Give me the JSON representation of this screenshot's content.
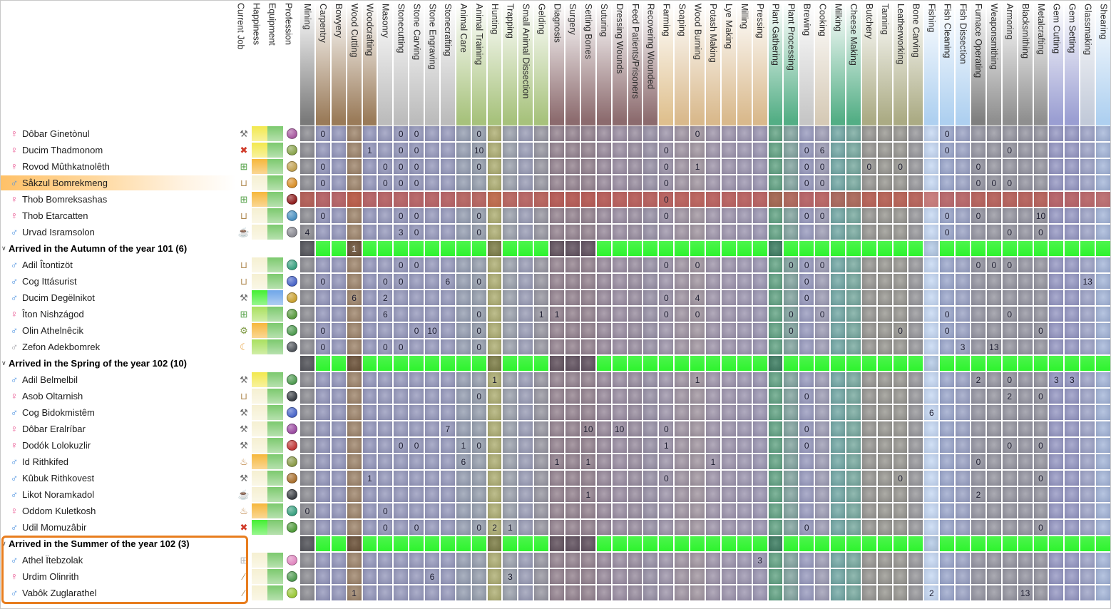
{
  "header": {
    "info_columns": [
      "Current Job",
      "Happiness",
      "Equipment",
      "Profession"
    ],
    "labor_columns": [
      {
        "label": "Mining",
        "header": "#7a7a7a",
        "body": "#8b8b90",
        "group": "#56575c"
      },
      {
        "label": "Carpentry",
        "header": "#9a7b59",
        "body": "#9295ba",
        "group": "green"
      },
      {
        "label": "Bowyery",
        "header": "#9a7b59",
        "body": "#9295ba",
        "group": "green"
      },
      {
        "label": "Wood Cutting",
        "header": "#9a7b59",
        "body": "#9c8267",
        "group": "#6d5339"
      },
      {
        "label": "Woodcrafting",
        "header": "#9a7b59",
        "body": "#9295ba",
        "group": "green"
      },
      {
        "label": "Masonry",
        "header": "#bcbcbc",
        "body": "#9598bb",
        "group": "green"
      },
      {
        "label": "Stonecutting",
        "header": "#bcbcbc",
        "body": "#9598bb",
        "group": "green"
      },
      {
        "label": "Stone Carving",
        "header": "#bcbcbc",
        "body": "#9598bb",
        "group": "green"
      },
      {
        "label": "Stone Engraving",
        "header": "#bcbcbc",
        "body": "#9598bb",
        "group": "green"
      },
      {
        "label": "Stonecrafting",
        "header": "#bcbcbc",
        "body": "#9598bb",
        "group": "green"
      },
      {
        "label": "Animal Care",
        "header": "#a7c27c",
        "body": "#949db0",
        "group": "green"
      },
      {
        "label": "Animal Training",
        "header": "#a7c27c",
        "body": "#959eac",
        "group": "green"
      },
      {
        "label": "Hunting",
        "header": "#a7c27c",
        "body": "#acac6e",
        "group": "#7f8048"
      },
      {
        "label": "Trapping",
        "header": "#a7c27c",
        "body": "#9aa0ab",
        "group": "green"
      },
      {
        "label": "Small Animal Dissection",
        "header": "#a7c27c",
        "body": "#989bb4",
        "group": "green"
      },
      {
        "label": "Gelding",
        "header": "#a7c27c",
        "body": "#96959f",
        "group": "green"
      },
      {
        "label": "Diagnosis",
        "header": "#8c6b6e",
        "body": "#93818d",
        "group": "#655560"
      },
      {
        "label": "Surgery",
        "header": "#8c6b6e",
        "body": "#92808c",
        "group": "#635360"
      },
      {
        "label": "Setting Bones",
        "header": "#8c6b6e",
        "body": "#92808c",
        "group": "#635360"
      },
      {
        "label": "Suturing",
        "header": "#8c6b6e",
        "body": "#968798",
        "group": "green"
      },
      {
        "label": "Dressing Wounds",
        "header": "#8c6b6e",
        "body": "#9a8da1",
        "group": "green"
      },
      {
        "label": "Feed Patients/Prisoners",
        "header": "#8c6b6e",
        "body": "#968a9c",
        "group": "green"
      },
      {
        "label": "Recovering Wounded",
        "header": "#8c6b6e",
        "body": "#968fa4",
        "group": "green"
      },
      {
        "label": "Farming",
        "header": "#dfc08e",
        "body": "#9c93a8",
        "group": "green"
      },
      {
        "label": "Soaping",
        "header": "#d9b98c",
        "body": "#9e92a0",
        "group": "green"
      },
      {
        "label": "Wood Burning",
        "header": "#d9b98c",
        "body": "#a0949e",
        "group": "green"
      },
      {
        "label": "Potash Making",
        "header": "#d9b98c",
        "body": "#9d93a8",
        "group": "green"
      },
      {
        "label": "Lye Making",
        "header": "#d9b98c",
        "body": "#9c93ab",
        "group": "green"
      },
      {
        "label": "Milling",
        "header": "#d9b98c",
        "body": "#9b94ae",
        "group": "green"
      },
      {
        "label": "Pressing",
        "header": "#d9b98c",
        "body": "#9a94b0",
        "group": "green"
      },
      {
        "label": "Plant Gathering",
        "header": "#53ae85",
        "body": "#5ea180",
        "group": "#3f7f63"
      },
      {
        "label": "Plant Processing",
        "header": "#53ae85",
        "body": "#7fa29c",
        "group": "green"
      },
      {
        "label": "Brewing",
        "header": "#c6c6c6",
        "body": "#9799bd",
        "group": "green"
      },
      {
        "label": "Cooking",
        "header": "#d6cab6",
        "body": "#9c9bb3",
        "group": "green"
      },
      {
        "label": "Milking",
        "header": "#53ae85",
        "body": "#6fa6a2",
        "group": "green"
      },
      {
        "label": "Cheese Making",
        "header": "#53ae85",
        "body": "#74a79c",
        "group": "green"
      },
      {
        "label": "Butchery",
        "header": "#abab84",
        "body": "#95948f",
        "group": "green"
      },
      {
        "label": "Tanning",
        "header": "#abab84",
        "body": "#96958e",
        "group": "green"
      },
      {
        "label": "Leatherworking",
        "header": "#abab84",
        "body": "#97968f",
        "group": "green"
      },
      {
        "label": "Bone Carving",
        "header": "#abab84",
        "body": "#959598",
        "group": "green"
      },
      {
        "label": "Fishing",
        "header": "#aed0f0",
        "body": "#c5d8f3",
        "group": "#b7cde8"
      },
      {
        "label": "Fish Cleaning",
        "header": "#aed0f0",
        "body": "#9aa6cb",
        "group": "green"
      },
      {
        "label": "Fish Dissection",
        "header": "#aed0f0",
        "body": "#99a1c3",
        "group": "green"
      },
      {
        "label": "Furnace Operating",
        "header": "#7f7f7f",
        "body": "#93939f",
        "group": "green"
      },
      {
        "label": "Weaponsmithing",
        "header": "#8f8f8f",
        "body": "#94949e",
        "group": "green"
      },
      {
        "label": "Armoring",
        "header": "#8f8f8f",
        "body": "#94949e",
        "group": "green"
      },
      {
        "label": "Blacksmithing",
        "header": "#8f8f8f",
        "body": "#93939f",
        "group": "green"
      },
      {
        "label": "Metalcrafting",
        "header": "#8f8f8f",
        "body": "#94949e",
        "group": "green"
      },
      {
        "label": "Gem Cutting",
        "header": "#9a9ed2",
        "body": "#9395c1",
        "group": "green"
      },
      {
        "label": "Gem Setting",
        "header": "#9a9ed2",
        "body": "#9395c1",
        "group": "green"
      },
      {
        "label": "Glassmaking",
        "header": "#c2cad9",
        "body": "#9ba1c5",
        "group": "green"
      },
      {
        "label": "Shearing",
        "header": "#aed0f0",
        "body": "#a3b5d8",
        "group": "green"
      }
    ]
  },
  "palettes": {
    "happiness": {
      "yellow": "#f2e84e",
      "orange": "#f6b73c",
      "cream": "#f5f0d2",
      "lightgreen": "#a9e05f",
      "brightgreen": "#44ef33"
    },
    "equipment": {
      "green": "#7cc96e",
      "blue": "#6fa6e8"
    },
    "gender": {
      "female": {
        "symbol": "♀",
        "color": "#e84a8a"
      },
      "male": {
        "symbol": "♂",
        "color": "#4a90e0"
      },
      "male-gray": {
        "symbol": "♂",
        "color": "#9a9aa2"
      }
    },
    "jobs": {
      "tools": {
        "glyph": "⚒",
        "color": "#6b6b6b"
      },
      "cancel": {
        "glyph": "✖",
        "color": "#d03a28"
      },
      "construct": {
        "glyph": "⊞",
        "color": "#56a24a"
      },
      "construct-gray": {
        "glyph": "⊞",
        "color": "#b5b5b5"
      },
      "haul": {
        "glyph": "⊔",
        "color": "#b08a52"
      },
      "bowl": {
        "glyph": "☕",
        "color": "#8a5a28"
      },
      "gears": {
        "glyph": "⚙",
        "color": "#7f9a45"
      },
      "sleep": {
        "glyph": "☾",
        "color": "#e8a03c"
      },
      "drink": {
        "glyph": "♨",
        "color": "#b5742c"
      },
      "brush": {
        "glyph": "∕",
        "color": "#b08a52"
      }
    },
    "group_green": "#2ef32e",
    "red_row_tint": "#c64232",
    "selection_box_color": "#e87d1e"
  },
  "rows": [
    {
      "type": "dwarf",
      "name": "Dôbar Ginetònul",
      "gender": "female",
      "job": "tools",
      "happiness": "yellow",
      "equipment": "green",
      "prof": "#a85aa0",
      "cells": {
        "1": "0",
        "6": "0",
        "7": "0",
        "11": "0",
        "25": "0",
        "41": "0"
      }
    },
    {
      "type": "dwarf",
      "name": "Ducim Thadmonom",
      "gender": "female",
      "job": "cancel",
      "happiness": "yellow",
      "equipment": "green",
      "prof": "#8aa44e",
      "cells": {
        "4": "1",
        "6": "0",
        "7": "0",
        "11": "10",
        "23": "0",
        "32": "0",
        "33": "6",
        "41": "0",
        "45": "0"
      }
    },
    {
      "type": "dwarf",
      "name": "Rovod Mûthkatnolêth",
      "gender": "female",
      "job": "construct",
      "happiness": "orange",
      "equipment": "green",
      "prof": "#c0a050",
      "cells": {
        "1": "0",
        "5": "0",
        "6": "0",
        "7": "0",
        "11": "0",
        "23": "0",
        "25": "1",
        "32": "0",
        "33": "0",
        "36": "0",
        "38": "0",
        "43": "0"
      }
    },
    {
      "type": "dwarf",
      "name": "Såkzul Bomrekmeng",
      "gender": "male",
      "job": "haul",
      "happiness": "cream",
      "equipment": "green",
      "prof": "#d88f2a",
      "selected": true,
      "cells": {
        "1": "0",
        "5": "0",
        "6": "0",
        "7": "0",
        "23": "0",
        "32": "0",
        "33": "0",
        "43": "0",
        "44": "0",
        "45": "0"
      }
    },
    {
      "type": "dwarf",
      "name": "Thob Bomreksashas",
      "gender": "female",
      "job": "construct",
      "happiness": "orange",
      "equipment": "green",
      "prof": "#8f1f1f",
      "tint": "red",
      "cells": {
        "23": "0"
      }
    },
    {
      "type": "dwarf",
      "name": "Thob Etarcatten",
      "gender": "female",
      "job": "haul",
      "happiness": "cream",
      "equipment": "green",
      "prof": "#4a90c0",
      "cells": {
        "1": "0",
        "6": "0",
        "7": "0",
        "11": "0",
        "23": "0",
        "32": "0",
        "33": "0",
        "41": "0",
        "43": "0",
        "47": "10"
      }
    },
    {
      "type": "dwarf",
      "name": "Urvad Isramsolon",
      "gender": "male",
      "job": "bowl",
      "happiness": "cream",
      "equipment": "green",
      "prof": "#8a8a92",
      "cells": {
        "0": "4",
        "6": "3",
        "7": "0",
        "11": "0",
        "41": "0",
        "45": "0",
        "47": "0"
      }
    },
    {
      "type": "group",
      "label": "Arrived in the Autumn of the year 101 (6)",
      "cells": {
        "3": "1"
      }
    },
    {
      "type": "dwarf",
      "name": "Adil Îtontizöt",
      "gender": "male",
      "job": "haul",
      "happiness": "cream",
      "equipment": "green",
      "prof": "#3aa080",
      "cells": {
        "6": "0",
        "7": "0",
        "23": "0",
        "25": "0",
        "31": "0",
        "32": "0",
        "33": "0",
        "43": "0",
        "44": "0",
        "45": "0"
      }
    },
    {
      "type": "dwarf",
      "name": "Cog Ittásurist",
      "gender": "male",
      "job": "haul",
      "happiness": "cream",
      "equipment": "green",
      "prof": "#4a66c8",
      "cells": {
        "1": "0",
        "5": "0",
        "6": "0",
        "9": "6",
        "11": "0",
        "32": "0",
        "50": "13"
      }
    },
    {
      "type": "dwarf",
      "name": "Ducim Degëlnikot",
      "gender": "male",
      "job": "tools",
      "happiness": "brightgreen",
      "equipment": "blue",
      "prof": "#c8a030",
      "cells": {
        "3": "6",
        "5": "2",
        "23": "0",
        "25": "4",
        "32": "0"
      }
    },
    {
      "type": "dwarf",
      "name": "Îton Nishzágod",
      "gender": "female",
      "job": "construct",
      "happiness": "lightgreen",
      "equipment": "green",
      "prof": "#5a9a40",
      "cells": {
        "5": "6",
        "11": "0",
        "15": "1",
        "16": "1",
        "23": "0",
        "25": "0",
        "31": "0",
        "33": "0",
        "41": "0",
        "45": "0"
      }
    },
    {
      "type": "dwarf",
      "name": "Olin Athelnêcik",
      "gender": "male",
      "job": "gears",
      "happiness": "orange",
      "equipment": "green",
      "prof": "#4f9a50",
      "cells": {
        "1": "0",
        "7": "0",
        "8": "10",
        "11": "0",
        "31": "0",
        "38": "0",
        "41": "0",
        "47": "0"
      }
    },
    {
      "type": "dwarf",
      "name": "Zefon Adekbomrek",
      "gender": "male-gray",
      "job": "sleep",
      "happiness": "lightgreen",
      "equipment": "green",
      "prof": "#50555c",
      "cells": {
        "1": "0",
        "5": "0",
        "6": "0",
        "11": "0",
        "42": "3",
        "44": "13"
      }
    },
    {
      "type": "group",
      "label": "Arrived in the Spring of the year 102 (10)",
      "cells": {}
    },
    {
      "type": "dwarf",
      "name": "Adil Belmelbil",
      "gender": "male",
      "job": "tools",
      "happiness": "yellow",
      "equipment": "green",
      "prof": "#4f9a50",
      "cells": {
        "12": "1",
        "25": "1",
        "43": "2",
        "45": "0",
        "48": "3",
        "49": "3"
      }
    },
    {
      "type": "dwarf",
      "name": "Asob Oltarnish",
      "gender": "female",
      "job": "haul",
      "happiness": "cream",
      "equipment": "green",
      "prof": "#3a3f45",
      "cells": {
        "11": "0",
        "32": "0",
        "45": "2",
        "47": "0"
      }
    },
    {
      "type": "dwarf",
      "name": "Cog Bidokmistêm",
      "gender": "male",
      "job": "tools",
      "happiness": "cream",
      "equipment": "green",
      "prof": "#4a66c8",
      "cells": {
        "40": "6"
      }
    },
    {
      "type": "dwarf",
      "name": "Dôbar Eralríbar",
      "gender": "female",
      "job": "tools",
      "happiness": "cream",
      "equipment": "green",
      "prof": "#9a4aa0",
      "cells": {
        "9": "7",
        "18": "10",
        "20": "10",
        "23": "0",
        "32": "0"
      }
    },
    {
      "type": "dwarf",
      "name": "Dodók Lolokuzlir",
      "gender": "female",
      "job": "tools",
      "happiness": "cream",
      "equipment": "green",
      "prof": "#c03838",
      "cells": {
        "6": "0",
        "7": "0",
        "10": "1",
        "11": "0",
        "23": "1",
        "32": "0",
        "45": "0",
        "47": "0"
      }
    },
    {
      "type": "dwarf",
      "name": "Id Rithkifed",
      "gender": "male",
      "job": "drink",
      "happiness": "orange",
      "equipment": "green",
      "prof": "#8a9a48",
      "cells": {
        "10": "6",
        "16": "1",
        "18": "1",
        "26": "1",
        "43": "0"
      }
    },
    {
      "type": "dwarf",
      "name": "Kûbuk Rithkovest",
      "gender": "male",
      "job": "tools",
      "happiness": "cream",
      "equipment": "green",
      "prof": "#a8702f",
      "cells": {
        "4": "1",
        "23": "0",
        "38": "0",
        "47": "0"
      }
    },
    {
      "type": "dwarf",
      "name": "Likot Noramkadol",
      "gender": "male",
      "job": "bowl",
      "happiness": "cream",
      "equipment": "green",
      "prof": "#3c4045",
      "cells": {
        "18": "1",
        "43": "2"
      }
    },
    {
      "type": "dwarf",
      "name": "Oddom Kuletkosh",
      "gender": "female",
      "job": "drink",
      "happiness": "orange",
      "equipment": "green",
      "prof": "#3aa080",
      "cells": {
        "0": "0",
        "5": "0"
      }
    },
    {
      "type": "dwarf",
      "name": "Udil Momuzâbir",
      "gender": "male",
      "job": "cancel",
      "happiness": "brightgreen",
      "equipment": "green",
      "prof": "#4f9a3a",
      "cells": {
        "5": "0",
        "7": "0",
        "11": "0",
        "12": "2",
        "13": "1",
        "32": "0",
        "47": "0"
      }
    },
    {
      "type": "group",
      "label": "Arrived in the Summer of the year 102 (3)",
      "cells": {}
    },
    {
      "type": "dwarf",
      "name": "Athel Ïtebzolak",
      "gender": "male",
      "job": "construct-gray",
      "happiness": "cream",
      "equipment": "green",
      "prof": "#e088c0",
      "cells": {
        "29": "3"
      }
    },
    {
      "type": "dwarf",
      "name": "Urdim Olinrith",
      "gender": "female",
      "job": "brush",
      "happiness": "cream",
      "equipment": "green",
      "prof": "#4f9a50",
      "cells": {
        "8": "6",
        "13": "3"
      }
    },
    {
      "type": "dwarf",
      "name": "Vabôk Zuglarathel",
      "gender": "male",
      "job": "brush",
      "happiness": "cream",
      "equipment": "green",
      "prof": "#9ac838",
      "cells": {
        "3": "1",
        "40": "2",
        "46": "13"
      }
    }
  ],
  "selection": {
    "selected_row": "Såkzul Bomrekmeng",
    "boxed_group": "Arrived in the Summer of the year 102 (3)"
  }
}
